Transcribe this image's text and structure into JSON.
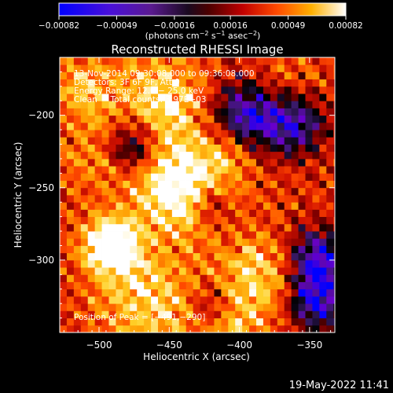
{
  "chart_data": {
    "type": "heatmap",
    "title": "Reconstructed RHESSI Image",
    "xlabel": "Heliocentric X (arcsec)",
    "ylabel": "Heliocentric Y (arcsec)",
    "xlim": [
      -528,
      -332
    ],
    "ylim": [
      -350,
      -160
    ],
    "x_ticks": [
      -500,
      -450,
      -400,
      -350
    ],
    "x_tick_labels": [
      "−500",
      "−450",
      "−400",
      "−350"
    ],
    "y_ticks": [
      -200,
      -250,
      -300
    ],
    "y_tick_labels": [
      "−200",
      "−250",
      "−300"
    ],
    "colorbar": {
      "range": [
        -0.00082,
        0.00082
      ],
      "ticks": [
        -0.00082,
        -0.00049,
        -0.00016,
        0.00016,
        0.00049,
        0.00082
      ],
      "tick_labels": [
        "−0.00082",
        "−0.00049",
        "−0.00016",
        "0.00016",
        "0.00049",
        "0.00082"
      ],
      "unit_line1": "(photons cm",
      "unit_exp1": "−2",
      "unit_mid": " s",
      "unit_exp2": "−1",
      "unit_mid2": " asec",
      "unit_exp3": "−2",
      "unit_end": ")"
    },
    "annotations": [
      "13-Nov-2014 09:30:08.000 to 09:36:08.000",
      "Detectors: 3F 6F 9F, Att 0",
      "Energy Range: 12.0 − 25.0 keV",
      "Clean     Total counts: 3.97E+03"
    ],
    "peak_label": "Position of Peak = [",
    "peak_value": "−491,−290",
    "peak_close": "]",
    "peak": [
      -491,
      -290
    ],
    "colors": {
      "colormap": [
        "#0000ff",
        "#6a00c8",
        "#3a1a6a",
        "#000000",
        "#8a0000",
        "#d21200",
        "#ff4a00",
        "#ff9a00",
        "#ffd22a",
        "#ffffff"
      ],
      "background": "#000000",
      "foreground": "#ffffff"
    }
  },
  "footer": {
    "timestamp": "19-May-2022 11:41"
  }
}
